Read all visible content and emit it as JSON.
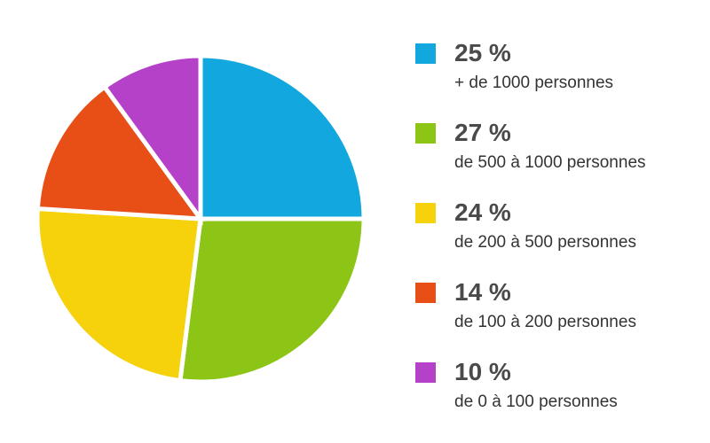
{
  "chart_data": {
    "type": "pie",
    "slices": [
      {
        "value": 25,
        "value_label": "25 %",
        "label": "+ de 1000 personnes",
        "color": "#12a8df"
      },
      {
        "value": 27,
        "value_label": "27 %",
        "label": "de 500 à 1000 personnes",
        "color": "#8cc516"
      },
      {
        "value": 24,
        "value_label": "24 %",
        "label": "de 200 à 500 personnes",
        "color": "#f6d20c"
      },
      {
        "value": 14,
        "value_label": "14 %",
        "label": "de 100 à 200 personnes",
        "color": "#e74f17"
      },
      {
        "value": 10,
        "value_label": "10 %",
        "label": "de 0 à 100 personnes",
        "color": "#b441c8"
      }
    ],
    "legend_position": "right",
    "start_angle_deg": 0,
    "direction": "clockwise"
  }
}
